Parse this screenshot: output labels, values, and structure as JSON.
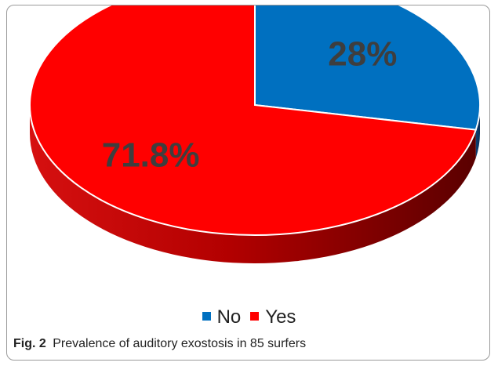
{
  "chart_data": {
    "type": "pie",
    "categories": [
      "No",
      "Yes"
    ],
    "values": [
      28,
      71.8
    ],
    "data_labels": [
      "28%",
      "71.8%"
    ],
    "colors": [
      "#0070c0",
      "#ff0000"
    ],
    "style": "3d",
    "legend_position": "bottom"
  },
  "caption": {
    "label": "Fig. 2",
    "text": "Prevalence of auditory exostosis in 85 surfers"
  }
}
